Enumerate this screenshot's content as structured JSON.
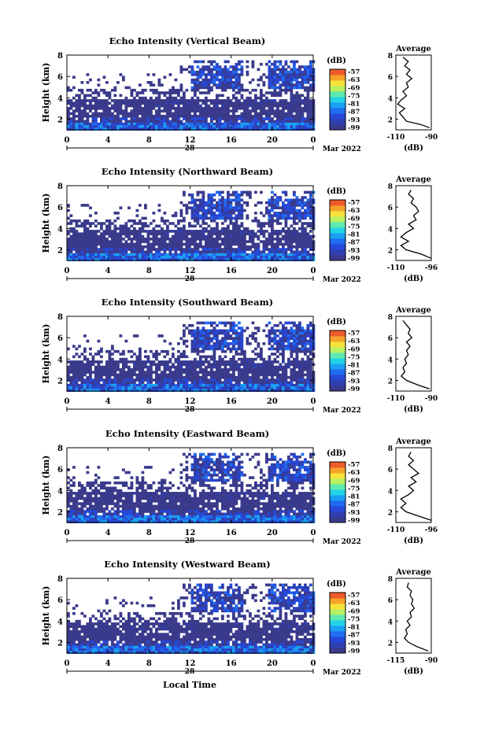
{
  "figure": {
    "x_axis_label": "Local Time",
    "unit_label": "(dB)",
    "date_label": "Mar 2022",
    "day_label": "28",
    "average_title": "Average"
  },
  "chart_data": [
    {
      "type": "heatmap",
      "title": "Echo Intensity (Vertical Beam)",
      "xlabel": "",
      "ylabel": "Height (km)",
      "x_ticks": [
        "0",
        "4",
        "8",
        "12",
        "16",
        "20",
        "0"
      ],
      "y_ticks": [
        "2",
        "4",
        "6",
        "8"
      ],
      "xlim": [
        0,
        24
      ],
      "ylim": [
        1,
        8
      ],
      "colorbar": {
        "label": "(dB)",
        "ticks": [
          "-57",
          "-63",
          "-69",
          "-75",
          "-81",
          "-87",
          "-93",
          "-99"
        ],
        "range": [
          -99,
          -57
        ]
      },
      "average": {
        "title": "Average",
        "xlabel": "(dB)",
        "x_ticks": [
          "-110",
          "-90"
        ],
        "xlim": [
          -110,
          -90
        ],
        "y_ticks": [
          "2",
          "4",
          "6",
          "8"
        ],
        "ylim": [
          1,
          8
        ],
        "profile": [
          [
            -91,
            1.2
          ],
          [
            -96,
            1.5
          ],
          [
            -104,
            1.8
          ],
          [
            -106,
            2.2
          ],
          [
            -108,
            2.6
          ],
          [
            -105,
            3.0
          ],
          [
            -109,
            3.4
          ],
          [
            -107,
            3.8
          ],
          [
            -104,
            4.2
          ],
          [
            -106,
            4.6
          ],
          [
            -103,
            5.0
          ],
          [
            -104,
            5.4
          ],
          [
            -101,
            5.8
          ],
          [
            -104,
            6.2
          ],
          [
            -102,
            6.6
          ],
          [
            -105,
            7.0
          ],
          [
            -103,
            7.4
          ],
          [
            -106,
            7.8
          ]
        ]
      }
    },
    {
      "type": "heatmap",
      "title": "Echo Intensity (Northward Beam)",
      "xlabel": "",
      "ylabel": "Height (km)",
      "x_ticks": [
        "0",
        "4",
        "8",
        "12",
        "16",
        "20",
        "0"
      ],
      "y_ticks": [
        "2",
        "4",
        "6",
        "8"
      ],
      "xlim": [
        0,
        24
      ],
      "ylim": [
        1,
        8
      ],
      "colorbar": {
        "label": "(dB)",
        "ticks": [
          "-57",
          "-63",
          "-69",
          "-75",
          "-81",
          "-87",
          "-93",
          "-99"
        ],
        "range": [
          -99,
          -57
        ]
      },
      "average": {
        "title": "Average",
        "xlabel": "(dB)",
        "x_ticks": [
          "-110",
          "-96"
        ],
        "xlim": [
          -110,
          -96
        ],
        "y_ticks": [
          "2",
          "4",
          "6",
          "8"
        ],
        "ylim": [
          1,
          8
        ],
        "profile": [
          [
            -96,
            1.2
          ],
          [
            -100,
            1.6
          ],
          [
            -106,
            2.0
          ],
          [
            -108,
            2.4
          ],
          [
            -105,
            2.8
          ],
          [
            -108,
            3.2
          ],
          [
            -106,
            3.6
          ],
          [
            -103,
            4.0
          ],
          [
            -105,
            4.4
          ],
          [
            -102,
            4.8
          ],
          [
            -103,
            5.2
          ],
          [
            -101,
            5.6
          ],
          [
            -102,
            6.0
          ],
          [
            -104,
            6.4
          ],
          [
            -103,
            6.8
          ],
          [
            -105,
            7.2
          ],
          [
            -104,
            7.6
          ]
        ]
      }
    },
    {
      "type": "heatmap",
      "title": "Echo Intensity (Southward Beam)",
      "xlabel": "",
      "ylabel": "Height (km)",
      "x_ticks": [
        "0",
        "4",
        "8",
        "12",
        "16",
        "20",
        "0"
      ],
      "y_ticks": [
        "2",
        "4",
        "6",
        "8"
      ],
      "xlim": [
        0,
        24
      ],
      "ylim": [
        1,
        8
      ],
      "colorbar": {
        "label": "(dB)",
        "ticks": [
          "-57",
          "-63",
          "-69",
          "-75",
          "-81",
          "-87",
          "-93",
          "-99"
        ],
        "range": [
          -99,
          -57
        ]
      },
      "average": {
        "title": "Average",
        "xlabel": "(dB)",
        "x_ticks": [
          "-110",
          "-90"
        ],
        "xlim": [
          -110,
          -90
        ],
        "y_ticks": [
          "2",
          "4",
          "6",
          "8"
        ],
        "ylim": [
          1,
          8
        ],
        "profile": [
          [
            -91,
            1.2
          ],
          [
            -98,
            1.6
          ],
          [
            -104,
            2.0
          ],
          [
            -107,
            2.4
          ],
          [
            -105,
            2.8
          ],
          [
            -106,
            3.2
          ],
          [
            -104,
            3.6
          ],
          [
            -105,
            4.0
          ],
          [
            -103,
            4.4
          ],
          [
            -104,
            4.8
          ],
          [
            -102,
            5.2
          ],
          [
            -104,
            5.6
          ],
          [
            -101,
            6.0
          ],
          [
            -103,
            6.4
          ],
          [
            -102,
            6.8
          ],
          [
            -104,
            7.2
          ],
          [
            -106,
            7.6
          ]
        ]
      }
    },
    {
      "type": "heatmap",
      "title": "Echo Intensity (Eastward Beam)",
      "xlabel": "",
      "ylabel": "Height (km)",
      "x_ticks": [
        "0",
        "4",
        "8",
        "12",
        "16",
        "20",
        "0"
      ],
      "y_ticks": [
        "2",
        "4",
        "6",
        "8"
      ],
      "xlim": [
        0,
        24
      ],
      "ylim": [
        1,
        8
      ],
      "colorbar": {
        "label": "(dB)",
        "ticks": [
          "-57",
          "-63",
          "-69",
          "-75",
          "-81",
          "-87",
          "-93",
          "-99"
        ],
        "range": [
          -99,
          -57
        ]
      },
      "average": {
        "title": "Average",
        "xlabel": "(dB)",
        "x_ticks": [
          "-110",
          "-96"
        ],
        "xlim": [
          -110,
          -96
        ],
        "y_ticks": [
          "2",
          "4",
          "6",
          "8"
        ],
        "ylim": [
          1,
          8
        ],
        "profile": [
          [
            -96,
            1.2
          ],
          [
            -101,
            1.6
          ],
          [
            -106,
            2.0
          ],
          [
            -108,
            2.4
          ],
          [
            -106,
            2.8
          ],
          [
            -108,
            3.2
          ],
          [
            -105,
            3.6
          ],
          [
            -103,
            4.0
          ],
          [
            -105,
            4.4
          ],
          [
            -102,
            4.8
          ],
          [
            -104,
            5.2
          ],
          [
            -101,
            5.6
          ],
          [
            -103,
            6.0
          ],
          [
            -105,
            6.4
          ],
          [
            -103,
            6.8
          ],
          [
            -105,
            7.2
          ],
          [
            -104,
            7.6
          ]
        ]
      }
    },
    {
      "type": "heatmap",
      "title": "Echo Intensity (Westward Beam)",
      "xlabel": "Local Time",
      "ylabel": "Height (km)",
      "x_ticks": [
        "0",
        "4",
        "8",
        "12",
        "16",
        "20",
        "0"
      ],
      "y_ticks": [
        "2",
        "4",
        "6",
        "8"
      ],
      "xlim": [
        0,
        24
      ],
      "ylim": [
        1,
        8
      ],
      "colorbar": {
        "label": "(dB)",
        "ticks": [
          "-57",
          "-63",
          "-69",
          "-75",
          "-81",
          "-87",
          "-93",
          "-99"
        ],
        "range": [
          -99,
          -57
        ]
      },
      "average": {
        "title": "Average",
        "xlabel": "(dB)",
        "x_ticks": [
          "-115",
          "-90"
        ],
        "xlim": [
          -115,
          -90
        ],
        "y_ticks": [
          "2",
          "4",
          "6",
          "8"
        ],
        "ylim": [
          1,
          8
        ],
        "profile": [
          [
            -92,
            1.2
          ],
          [
            -100,
            1.6
          ],
          [
            -106,
            2.0
          ],
          [
            -109,
            2.4
          ],
          [
            -107,
            2.8
          ],
          [
            -108,
            3.2
          ],
          [
            -105,
            3.6
          ],
          [
            -107,
            4.0
          ],
          [
            -104,
            4.4
          ],
          [
            -105,
            4.8
          ],
          [
            -102,
            5.2
          ],
          [
            -104,
            5.6
          ],
          [
            -103,
            6.0
          ],
          [
            -105,
            6.4
          ],
          [
            -104,
            6.8
          ],
          [
            -107,
            7.2
          ],
          [
            -106,
            7.6
          ]
        ]
      }
    }
  ]
}
